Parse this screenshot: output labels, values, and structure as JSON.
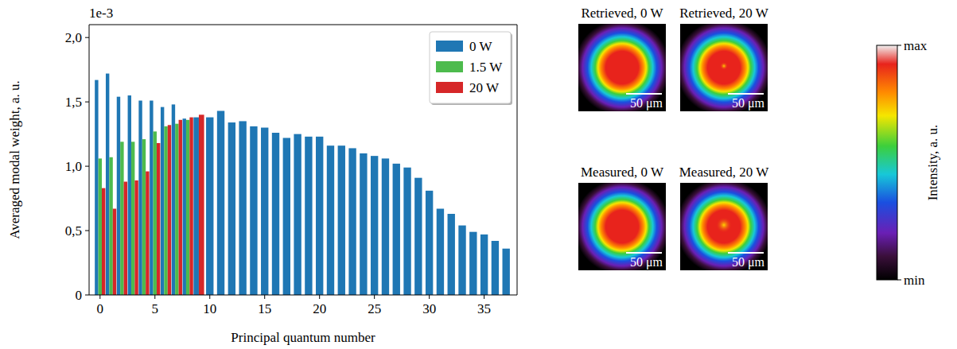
{
  "chart_data": {
    "type": "bar",
    "x_label": "Principal quantum number",
    "y_label": "Averaged modal weight, a. u.",
    "y_offset_label": "1e-3",
    "x": [
      0,
      1,
      2,
      3,
      4,
      5,
      6,
      7,
      8,
      9,
      10,
      11,
      12,
      13,
      14,
      15,
      16,
      17,
      18,
      19,
      20,
      21,
      22,
      23,
      24,
      25,
      26,
      27,
      28,
      29,
      30,
      31,
      32,
      33,
      34,
      35,
      36,
      37
    ],
    "series": [
      {
        "name": "0 W",
        "color": "#1f77b4",
        "values": [
          1.67,
          1.72,
          1.54,
          1.55,
          1.51,
          1.51,
          1.46,
          1.48,
          1.37,
          1.38,
          1.38,
          1.43,
          1.34,
          1.35,
          1.31,
          1.3,
          1.26,
          1.22,
          1.25,
          1.23,
          1.23,
          1.16,
          1.16,
          1.14,
          1.1,
          1.08,
          1.06,
          1.02,
          0.99,
          0.91,
          0.81,
          0.67,
          0.63,
          0.54,
          0.49,
          0.47,
          0.42,
          0.36
        ]
      },
      {
        "name": "1.5 W",
        "color": "#4dbb4d",
        "values": [
          1.06,
          1.07,
          1.19,
          1.19,
          1.21,
          1.27,
          1.31,
          1.33,
          1.36,
          null,
          null,
          null,
          null,
          null,
          null,
          null,
          null,
          null,
          null,
          null,
          null,
          null,
          null,
          null,
          null,
          null,
          null,
          null,
          null,
          null,
          null,
          null,
          null,
          null,
          null,
          null,
          null,
          null
        ]
      },
      {
        "name": "20 W",
        "color": "#d62728",
        "values": [
          0.83,
          0.67,
          0.88,
          0.89,
          0.96,
          1.18,
          1.32,
          1.36,
          1.38,
          1.4,
          null,
          null,
          null,
          null,
          null,
          null,
          null,
          null,
          null,
          null,
          null,
          null,
          null,
          null,
          null,
          null,
          null,
          null,
          null,
          null,
          null,
          null,
          null,
          null,
          null,
          null,
          null,
          null
        ]
      }
    ],
    "xlim": [
      -1,
      38
    ],
    "xticks": [
      0,
      5,
      10,
      15,
      20,
      25,
      30,
      35
    ],
    "ylim": [
      0,
      2.1
    ],
    "yticks": [
      0,
      {
        "value": 0.5,
        "label": "0,5"
      },
      {
        "value": 1.0,
        "label": "1,0"
      },
      {
        "value": 1.5,
        "label": "1,5"
      },
      {
        "value": 2.0,
        "label": "2,0"
      }
    ],
    "legend": "upper right"
  },
  "images": {
    "panels": [
      {
        "title": "Retrieved, 0 W",
        "scale_bar": "50 μm"
      },
      {
        "title": "Retrieved, 20 W",
        "scale_bar": "50 μm"
      },
      {
        "title": "Measured, 0 W",
        "scale_bar": "50 μm"
      },
      {
        "title": "Measured, 20 W",
        "scale_bar": "50 μm"
      }
    ],
    "colorbar": {
      "label": "Intensity, a. u.",
      "max_label": "max",
      "min_label": "min"
    }
  }
}
